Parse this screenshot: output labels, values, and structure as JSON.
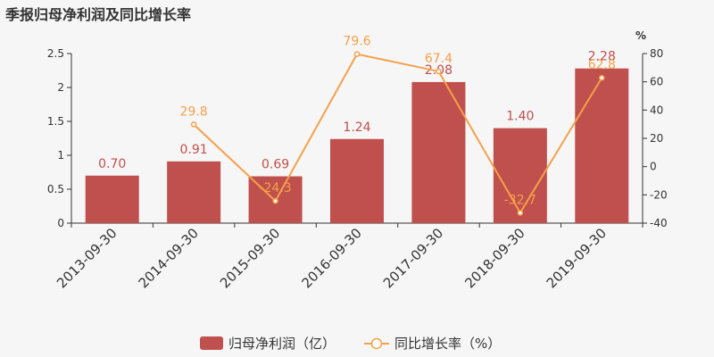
{
  "chart_data": {
    "type": "bar",
    "title": "季报归母净利润及同比增长率",
    "categories": [
      "2013-09-30",
      "2014-09-30",
      "2015-09-30",
      "2016-09-30",
      "2017-09-30",
      "2018-09-30",
      "2019-09-30"
    ],
    "series": [
      {
        "name": "归母净利润（亿）",
        "type": "bar",
        "axis": "left",
        "color": "#c0504d",
        "values": [
          0.7,
          0.91,
          0.69,
          1.24,
          2.08,
          1.4,
          2.28
        ],
        "labels": [
          "0.70",
          "0.91",
          "0.69",
          "1.24",
          "2.08",
          "1.40",
          "2.28"
        ]
      },
      {
        "name": "同比增长率（%）",
        "type": "line",
        "axis": "right",
        "color": "#f5a04a",
        "values": [
          null,
          29.8,
          -24.3,
          79.6,
          67.4,
          -32.7,
          62.8
        ],
        "labels": [
          "",
          "29.8",
          "-24.3",
          "79.6",
          "67.4",
          "-32.7",
          "62.8"
        ]
      }
    ],
    "y_left": {
      "min": 0,
      "max": 2.5,
      "ticks": [
        "0",
        "0.5",
        "1",
        "1.5",
        "2",
        "2.5"
      ]
    },
    "y_right": {
      "min": -40,
      "max": 80,
      "ticks": [
        "-40",
        "-20",
        "0",
        "20",
        "40",
        "60",
        "80"
      ],
      "unit": "%"
    },
    "legend": {
      "position": "bottom-center"
    },
    "grid": false
  }
}
